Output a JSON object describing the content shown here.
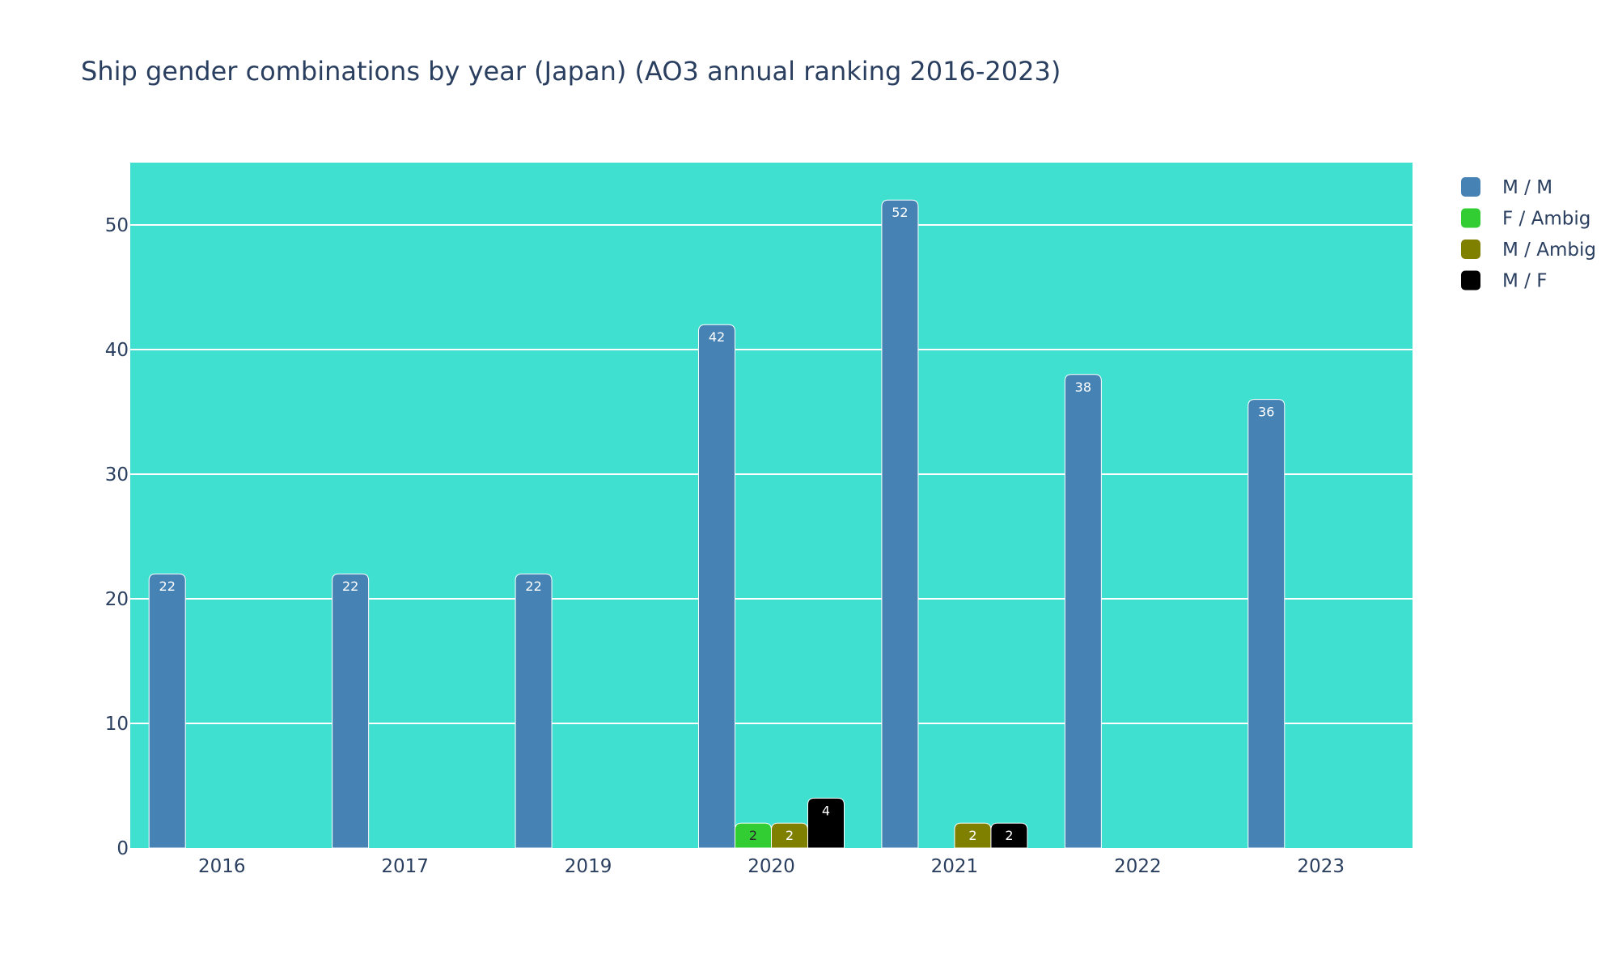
{
  "chart_data": {
    "type": "bar",
    "title": "Ship gender combinations by year (Japan) (AO3 annual ranking 2016-2023)",
    "xlabel": "",
    "ylabel": "",
    "categories": [
      "2016",
      "2017",
      "2019",
      "2020",
      "2021",
      "2022",
      "2023"
    ],
    "ylim": [
      0,
      55
    ],
    "yticks": [
      0,
      10,
      20,
      30,
      40,
      50
    ],
    "grid": true,
    "legend_position": "top-right",
    "plot_background": "#40E0D0",
    "series": [
      {
        "name": "M / M",
        "color": "#4682B4",
        "label_color": "#ffffff",
        "values": [
          22,
          22,
          22,
          42,
          52,
          38,
          36
        ]
      },
      {
        "name": "F / Ambig",
        "color": "#32CD32",
        "label_color": "#2a2a2a",
        "values": [
          null,
          null,
          null,
          2,
          null,
          null,
          null
        ]
      },
      {
        "name": "M / Ambig",
        "color": "#808000",
        "label_color": "#ffffff",
        "values": [
          null,
          null,
          null,
          2,
          2,
          null,
          null
        ]
      },
      {
        "name": "M / F",
        "color": "#000000",
        "label_color": "#ffffff",
        "values": [
          null,
          null,
          null,
          4,
          2,
          null,
          null
        ]
      }
    ]
  }
}
